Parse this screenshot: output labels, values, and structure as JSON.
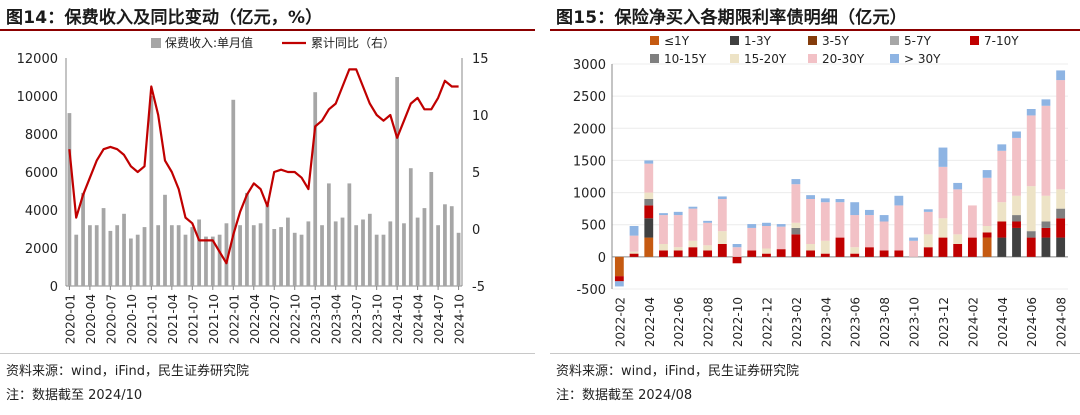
{
  "left": {
    "title": "图14：保费收入及同比变动（亿元，%）",
    "source": "资料来源：wind，iFind，民生证券研究院",
    "note": "注：数据截至 2024/10",
    "chart_data": {
      "type": "bar+line",
      "colors": {
        "bar": "#a6a6a6",
        "line": "#c00000"
      },
      "legend": [
        "保费收入:单月值",
        "累计同比（右）"
      ],
      "legend_position": "top",
      "yleft": {
        "min": 0,
        "max": 12000,
        "ticks": [
          0,
          2000,
          4000,
          6000,
          8000,
          10000,
          12000
        ]
      },
      "yright": {
        "min": -5,
        "max": 15,
        "ticks": [
          -5,
          0,
          5,
          10,
          15
        ]
      },
      "xtick_labels": [
        "2020-01",
        "2020-04",
        "2020-07",
        "2020-10",
        "2021-01",
        "2021-04",
        "2021-07",
        "2021-10",
        "2022-01",
        "2022-04",
        "2022-07",
        "2022-10",
        "2023-01",
        "2023-04",
        "2023-07",
        "2023-10",
        "2024-01",
        "2024-04",
        "2024-07",
        "2024-10"
      ],
      "months": [
        "2020-01",
        "2020-02",
        "2020-03",
        "2020-04",
        "2020-05",
        "2020-06",
        "2020-07",
        "2020-08",
        "2020-09",
        "2020-10",
        "2020-11",
        "2020-12",
        "2021-01",
        "2021-02",
        "2021-03",
        "2021-04",
        "2021-05",
        "2021-06",
        "2021-07",
        "2021-08",
        "2021-09",
        "2021-10",
        "2021-11",
        "2021-12",
        "2022-01",
        "2022-02",
        "2022-03",
        "2022-04",
        "2022-05",
        "2022-06",
        "2022-07",
        "2022-08",
        "2022-09",
        "2022-10",
        "2022-11",
        "2022-12",
        "2023-01",
        "2023-02",
        "2023-03",
        "2023-04",
        "2023-05",
        "2023-06",
        "2023-07",
        "2023-08",
        "2023-09",
        "2023-10",
        "2023-11",
        "2023-12",
        "2024-01",
        "2024-02",
        "2024-03",
        "2024-04",
        "2024-05",
        "2024-06",
        "2024-07",
        "2024-08",
        "2024-09",
        "2024-10"
      ],
      "bar_values": [
        9100,
        2700,
        4900,
        3200,
        3200,
        4100,
        2900,
        3200,
        3800,
        2500,
        2700,
        3100,
        10000,
        3200,
        4800,
        3200,
        3200,
        2700,
        3100,
        3500,
        2600,
        2600,
        2700,
        3300,
        9800,
        3200,
        4900,
        3200,
        3300,
        4300,
        3000,
        3100,
        3600,
        2800,
        2700,
        3400,
        10200,
        3200,
        5400,
        3400,
        3600,
        5400,
        3200,
        3500,
        3800,
        2700,
        2700,
        3400,
        11000,
        3300,
        6200,
        3600,
        4100,
        6000,
        3200,
        4300,
        4200,
        2800
      ],
      "line_values": [
        7,
        1,
        3,
        4.5,
        6,
        7,
        7.2,
        7,
        6.5,
        5.5,
        5,
        5.5,
        12.5,
        10,
        6,
        5,
        3.5,
        1,
        0.5,
        -1,
        -1,
        -1,
        -2,
        -3,
        -0.5,
        1.5,
        3,
        4,
        3.5,
        2,
        5,
        5.2,
        5,
        5,
        4.5,
        3.5,
        9,
        9.5,
        10.5,
        11,
        12.5,
        14,
        14,
        12.5,
        11,
        10,
        9.5,
        10,
        8,
        9.5,
        11,
        11.5,
        10.5,
        10.5,
        11.5,
        13,
        12.5,
        12.5
      ]
    }
  },
  "right": {
    "title": "图15：保险净买入各期限利率债明细（亿元）",
    "source": "资料来源：wind，iFind，民生证券研究院",
    "note": "注：数据截至 2024/08",
    "chart_data": {
      "type": "stacked-bar",
      "legend_position": "top",
      "y": {
        "min": -500,
        "max": 3000,
        "ticks": [
          -500,
          0,
          500,
          1000,
          1500,
          2000,
          2500,
          3000
        ]
      },
      "xtick_labels": [
        "2022-02",
        "2022-04",
        "2022-06",
        "2022-08",
        "2022-10",
        "2022-12",
        "2023-02",
        "2023-04",
        "2023-06",
        "2023-08",
        "2023-10",
        "2023-12",
        "2024-02",
        "2024-04",
        "2024-06",
        "2024-08"
      ],
      "months": [
        "2022-02",
        "2022-03",
        "2022-04",
        "2022-05",
        "2022-06",
        "2022-07",
        "2022-08",
        "2022-09",
        "2022-10",
        "2022-11",
        "2022-12",
        "2023-01",
        "2023-02",
        "2023-03",
        "2023-04",
        "2023-05",
        "2023-06",
        "2023-07",
        "2023-08",
        "2023-09",
        "2023-10",
        "2023-11",
        "2023-12",
        "2024-01",
        "2024-02",
        "2024-03",
        "2024-04",
        "2024-05",
        "2024-06",
        "2024-07",
        "2024-08"
      ],
      "series": [
        {
          "name": "≤1Y",
          "color": "#c55a11",
          "values": [
            -300,
            0,
            300,
            0,
            0,
            0,
            0,
            0,
            0,
            0,
            0,
            0,
            0,
            0,
            0,
            0,
            0,
            0,
            0,
            0,
            0,
            0,
            0,
            0,
            0,
            300,
            0,
            0,
            0,
            0,
            0
          ]
        },
        {
          "name": "1-3Y",
          "color": "#404040",
          "values": [
            0,
            0,
            300,
            0,
            0,
            0,
            0,
            0,
            0,
            0,
            0,
            0,
            0,
            0,
            0,
            0,
            0,
            0,
            0,
            0,
            0,
            0,
            0,
            0,
            0,
            0,
            300,
            450,
            0,
            300,
            300
          ]
        },
        {
          "name": "3-5Y",
          "color": "#843c0c",
          "values": [
            0,
            0,
            0,
            0,
            0,
            0,
            0,
            0,
            0,
            0,
            0,
            0,
            0,
            0,
            0,
            0,
            0,
            0,
            0,
            0,
            0,
            0,
            0,
            0,
            0,
            0,
            0,
            0,
            0,
            0,
            0
          ]
        },
        {
          "name": "5-7Y",
          "color": "#a6a6a6",
          "values": [
            0,
            0,
            0,
            0,
            0,
            0,
            0,
            0,
            0,
            0,
            0,
            0,
            0,
            0,
            0,
            0,
            0,
            0,
            0,
            0,
            0,
            0,
            0,
            0,
            0,
            0,
            0,
            0,
            0,
            0,
            0
          ]
        },
        {
          "name": "7-10Y",
          "color": "#c00000",
          "values": [
            -80,
            50,
            200,
            100,
            100,
            150,
            100,
            200,
            -100,
            100,
            50,
            120,
            350,
            100,
            50,
            300,
            50,
            150,
            100,
            100,
            0,
            150,
            300,
            200,
            300,
            80,
            250,
            100,
            300,
            150,
            300
          ]
        },
        {
          "name": "10-15Y",
          "color": "#7f7f7f",
          "values": [
            0,
            0,
            100,
            0,
            0,
            0,
            0,
            0,
            0,
            0,
            0,
            0,
            100,
            0,
            0,
            0,
            0,
            0,
            0,
            0,
            0,
            0,
            0,
            0,
            0,
            0,
            0,
            100,
            100,
            100,
            150
          ]
        },
        {
          "name": "15-20Y",
          "color": "#ede3c6",
          "values": [
            0,
            30,
            100,
            100,
            50,
            100,
            80,
            200,
            0,
            0,
            80,
            0,
            80,
            100,
            200,
            0,
            100,
            0,
            0,
            0,
            0,
            200,
            300,
            150,
            0,
            100,
            300,
            300,
            700,
            400,
            300
          ]
        },
        {
          "name": "20-30Y",
          "color": "#f2c1c6",
          "values": [
            0,
            250,
            450,
            450,
            500,
            500,
            350,
            500,
            150,
            350,
            350,
            350,
            600,
            700,
            600,
            550,
            500,
            500,
            450,
            700,
            250,
            350,
            800,
            700,
            500,
            750,
            800,
            900,
            1100,
            1400,
            1700
          ]
        },
        {
          "name": "> 30Y",
          "color": "#8eb4e3",
          "values": [
            -80,
            150,
            50,
            30,
            50,
            30,
            30,
            40,
            50,
            60,
            50,
            40,
            80,
            60,
            60,
            50,
            200,
            80,
            100,
            150,
            50,
            40,
            300,
            100,
            0,
            120,
            100,
            100,
            100,
            100,
            150
          ]
        }
      ]
    }
  }
}
